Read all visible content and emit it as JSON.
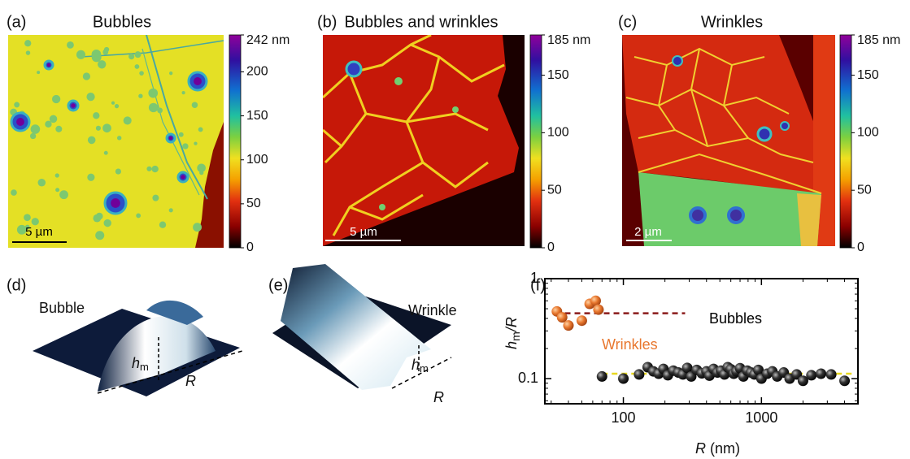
{
  "panels": [
    {
      "label": "(a)",
      "title": "Bubbles",
      "scale_bar": "5 µm",
      "colorbar": {
        "lim": [
          0,
          242
        ],
        "ticks": [
          {
            "value": 242,
            "label": "242 nm"
          },
          200,
          150,
          100,
          50,
          0
        ]
      }
    },
    {
      "label": "(b)",
      "title": "Bubbles and wrinkles",
      "scale_bar": "5 µm",
      "colorbar": {
        "lim": [
          0,
          185
        ],
        "ticks": [
          {
            "value": 185,
            "label": "185 nm"
          },
          150,
          100,
          50,
          0
        ]
      }
    },
    {
      "label": "(c)",
      "title": "Wrinkles",
      "scale_bar": "2 µm",
      "colorbar": {
        "lim": [
          0,
          185
        ],
        "ticks": [
          {
            "value": 185,
            "label": "185 nm"
          },
          150,
          100,
          50,
          0
        ]
      }
    }
  ],
  "models": [
    {
      "label": "(d)",
      "name": "Bubble",
      "height_symbol": "h",
      "height_subscript": "m",
      "radius_symbol": "R"
    },
    {
      "label": "(e)",
      "name": "Wrinkle",
      "height_symbol": "h",
      "height_subscript": "m",
      "radius_symbol": "R"
    }
  ],
  "chart_data": {
    "type": "scatter",
    "label": "(f)",
    "xlabel": {
      "symbol": "R",
      "unit": " (nm)"
    },
    "ylabel": {
      "symbol": "h",
      "subscript": "m",
      "rest": "/R"
    },
    "xscale": "log",
    "yscale": "log",
    "xlim": [
      27,
      5000
    ],
    "ylim": [
      0.056,
      1
    ],
    "xticks": [
      100,
      1000
    ],
    "yticks": [
      0.1,
      1
    ],
    "series": [
      {
        "name": "Wrinkles",
        "color": "#e8772e",
        "x": [
          33,
          36,
          40,
          50,
          57,
          63,
          66
        ],
        "values": [
          0.47,
          0.41,
          0.34,
          0.38,
          0.56,
          0.6,
          0.49
        ]
      },
      {
        "name": "Bubbles",
        "color": "#1a1a1a",
        "x": [
          70,
          100,
          130,
          150,
          165,
          180,
          195,
          210,
          230,
          250,
          270,
          290,
          310,
          340,
          370,
          400,
          420,
          450,
          480,
          510,
          540,
          570,
          600,
          630,
          660,
          700,
          740,
          790,
          840,
          890,
          950,
          1000,
          1100,
          1200,
          1300,
          1450,
          1600,
          1800,
          2000,
          2300,
          2700,
          3200,
          4000
        ],
        "values": [
          0.105,
          0.1,
          0.11,
          0.13,
          0.118,
          0.112,
          0.125,
          0.108,
          0.12,
          0.115,
          0.11,
          0.128,
          0.105,
          0.122,
          0.113,
          0.118,
          0.107,
          0.125,
          0.115,
          0.12,
          0.11,
          0.13,
          0.124,
          0.112,
          0.118,
          0.127,
          0.105,
          0.12,
          0.115,
          0.11,
          0.122,
          0.1,
          0.112,
          0.118,
          0.105,
          0.115,
          0.1,
          0.11,
          0.095,
          0.108,
          0.112,
          0.11,
          0.095
        ]
      }
    ],
    "fits": [
      {
        "color": "#8b1a1a",
        "x": [
          32,
          280
        ],
        "values": [
          0.45,
          0.45
        ]
      },
      {
        "color": "#e8d820",
        "x": [
          70,
          4500
        ],
        "values": [
          0.112,
          0.112
        ]
      }
    ]
  }
}
